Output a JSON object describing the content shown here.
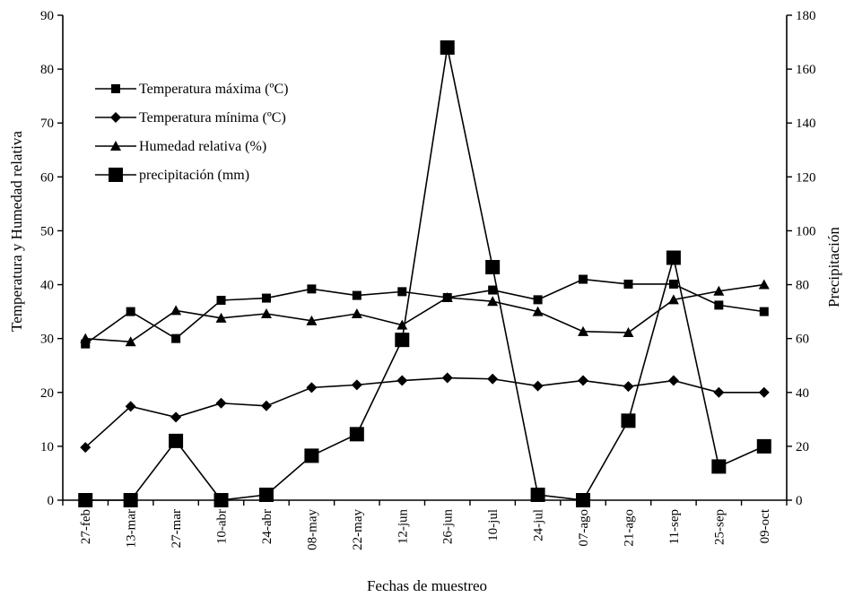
{
  "chart_data": {
    "type": "line",
    "xlabel": "Fechas de muestreo",
    "ylabel_left": "Temperatura y Humedad relativa",
    "ylabel_right": "Precipitación",
    "ylim_left": [
      0,
      90
    ],
    "yticks_left": [
      0,
      10,
      20,
      30,
      40,
      50,
      60,
      70,
      80,
      90
    ],
    "ylim_right": [
      0,
      180
    ],
    "yticks_right": [
      0,
      20,
      40,
      60,
      80,
      100,
      120,
      140,
      160,
      180
    ],
    "grid": false,
    "legend_position": "top-left",
    "categories": [
      "27-feb",
      "13-mar",
      "27-mar",
      "10-abr",
      "24-abr",
      "08-may",
      "22-may",
      "12-jun",
      "26-jun",
      "10-jul",
      "24-jul",
      "07-ago",
      "21-ago",
      "11-sep",
      "25-sep",
      "09-oct"
    ],
    "series": [
      {
        "name": "Temperatura máxima (ºC)",
        "axis": "left",
        "marker": "square-small",
        "values": [
          29,
          35,
          30,
          37.1,
          37.5,
          39.2,
          38,
          38.7,
          37.6,
          39,
          37.2,
          41,
          40.1,
          40.1,
          36.2,
          35
        ]
      },
      {
        "name": "Temperatura mínima (ºC)",
        "axis": "left",
        "marker": "diamond",
        "values": [
          9.8,
          17.4,
          15.4,
          18,
          17.5,
          20.9,
          21.4,
          22.2,
          22.7,
          22.5,
          21.2,
          22.2,
          21.1,
          22.2,
          20,
          20
        ]
      },
      {
        "name": "Humedad relativa (%)",
        "axis": "left",
        "marker": "triangle",
        "values": [
          30,
          29.4,
          35.2,
          33.8,
          34.6,
          33.3,
          34.6,
          32.5,
          37.6,
          36.9,
          35,
          31.3,
          31.1,
          37.2,
          38.8,
          40
        ]
      },
      {
        "name": "precipitación (mm)",
        "axis": "right",
        "marker": "square-large",
        "values": [
          0,
          0,
          22,
          0,
          2,
          16.5,
          24.5,
          59.5,
          168,
          86.5,
          2,
          0,
          29.5,
          90,
          12.5,
          20
        ]
      }
    ]
  }
}
